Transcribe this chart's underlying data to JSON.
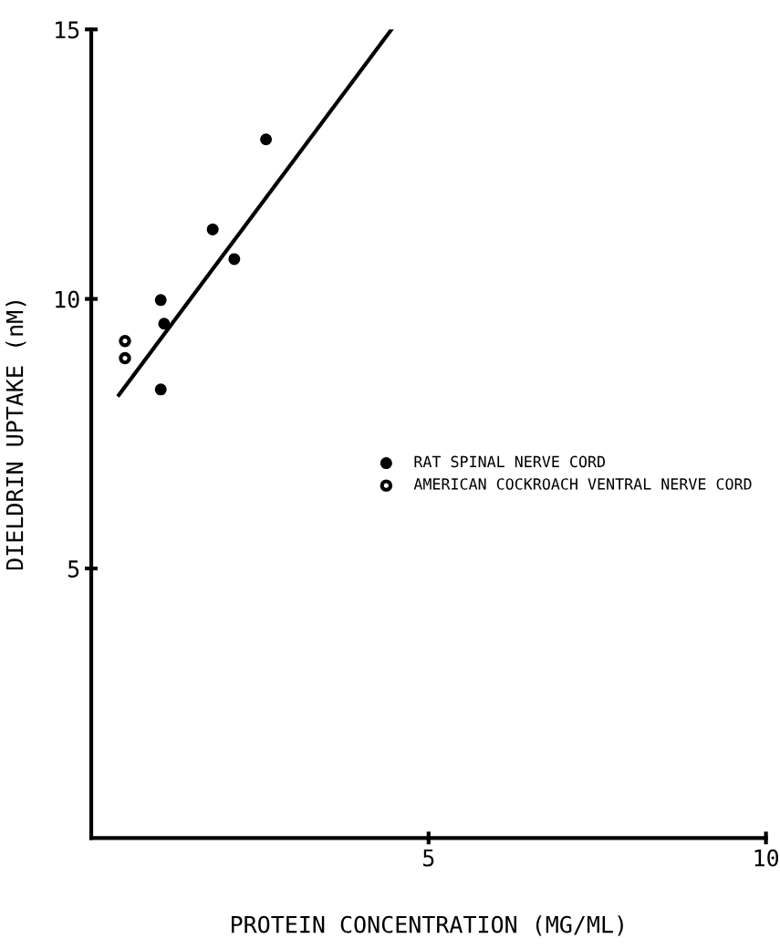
{
  "chart_data": {
    "type": "scatter",
    "xlabel": "PROTEIN CONCENTRATION (MG/ML)",
    "ylabel": "DIELDRIN UPTAKE (nM)",
    "series": [
      {
        "name": "RAT SPINAL NERVE CORD",
        "color": "#000000",
        "marker": "circle",
        "x": [
          1.03,
          1.08,
          1.03,
          1.8,
          2.12,
          2.59
        ],
        "values": [
          9.98,
          9.54,
          8.32,
          11.29,
          10.74,
          12.96
        ]
      },
      {
        "name": "AMERICAN COCKROACH VENTRAL NERVE CORD",
        "color": "#000000",
        "marker": "circle",
        "x": [
          0.5,
          0.5
        ],
        "values": [
          9.22,
          8.9
        ]
      },
      {
        "type": "line",
        "color": "#000000",
        "line_style": "solid",
        "x": [
          0.41,
          4.45
        ],
        "values": [
          8.22,
          15.0
        ]
      }
    ],
    "xlim": [
      0,
      10
    ],
    "ylim": [
      0,
      15
    ],
    "xticks": [
      5,
      10
    ],
    "yticks": [
      5,
      10,
      15
    ],
    "grid": false,
    "legend": "center right"
  }
}
